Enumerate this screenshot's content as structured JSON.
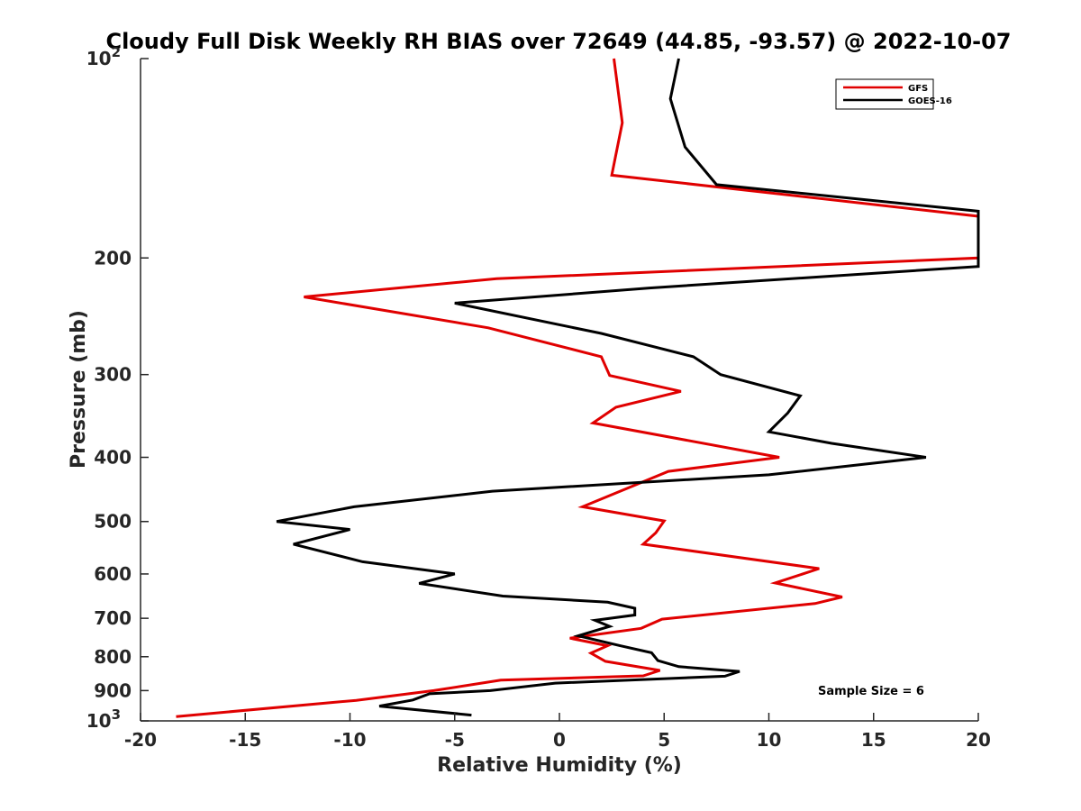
{
  "chart_data": {
    "type": "line",
    "title": "Cloudy Full Disk Weekly RH BIAS over 72649 (44.85, -93.57) @ 2022-10-07",
    "xlabel": "Relative Humidity (%)",
    "ylabel": "Pressure (mb)",
    "xlim": [
      -20,
      20
    ],
    "ylim": [
      100,
      1000
    ],
    "y_scale": "log",
    "y_reversed": true,
    "x_ticks": [
      "-20",
      "-15",
      "-10",
      "-5",
      "0",
      "5",
      "10",
      "15",
      "20"
    ],
    "y_ticks": [
      {
        "value": 100,
        "base": "10",
        "exp": "2"
      },
      {
        "value": 200,
        "label": "200"
      },
      {
        "value": 300,
        "label": "300"
      },
      {
        "value": 400,
        "label": "400"
      },
      {
        "value": 500,
        "label": "500"
      },
      {
        "value": 600,
        "label": "600"
      },
      {
        "value": 700,
        "label": "700"
      },
      {
        "value": 800,
        "label": "800"
      },
      {
        "value": 900,
        "label": "900"
      },
      {
        "value": 1000,
        "base": "10",
        "exp": "3"
      }
    ],
    "grid": false,
    "legend_position": "top-right",
    "annotation": "Sample Size = 6",
    "series": [
      {
        "name": "GFS",
        "color": "#e00000",
        "points": [
          [
            2.6,
            100
          ],
          [
            3.0,
            125
          ],
          [
            2.5,
            150
          ],
          [
            20,
            173
          ],
          [
            20,
            200
          ],
          [
            -3.0,
            215
          ],
          [
            -12.2,
            229
          ],
          [
            -3.4,
            255
          ],
          [
            2.0,
            282
          ],
          [
            2.4,
            301
          ],
          [
            5.8,
            318
          ],
          [
            2.7,
            336
          ],
          [
            1.6,
            355
          ],
          [
            10.5,
            400
          ],
          [
            5.2,
            420
          ],
          [
            1.1,
            475
          ],
          [
            5.0,
            499
          ],
          [
            4.6,
            520
          ],
          [
            4.0,
            541
          ],
          [
            12.4,
            589
          ],
          [
            10.3,
            619
          ],
          [
            13.5,
            650
          ],
          [
            12.2,
            665
          ],
          [
            4.9,
            702
          ],
          [
            3.9,
            725
          ],
          [
            0.5,
            750
          ],
          [
            2.3,
            770
          ],
          [
            1.5,
            790
          ],
          [
            2.2,
            813
          ],
          [
            4.8,
            839
          ],
          [
            4.0,
            855
          ],
          [
            -2.8,
            868
          ],
          [
            -6.0,
            900
          ],
          [
            -9.7,
            931
          ],
          [
            -18.3,
            985
          ]
        ]
      },
      {
        "name": "GOES-16",
        "color": "#000000",
        "points": [
          [
            5.7,
            100
          ],
          [
            5.3,
            115
          ],
          [
            6.0,
            136
          ],
          [
            7.5,
            155
          ],
          [
            20,
            170
          ],
          [
            20,
            206
          ],
          [
            4.3,
            222
          ],
          [
            -5.0,
            234
          ],
          [
            2.0,
            260
          ],
          [
            6.4,
            282
          ],
          [
            7.7,
            300
          ],
          [
            11.5,
            323
          ],
          [
            10.9,
            343
          ],
          [
            10.0,
            366
          ],
          [
            13.0,
            381
          ],
          [
            17.5,
            400
          ],
          [
            10.0,
            425
          ],
          [
            -3.2,
            450
          ],
          [
            -9.8,
            475
          ],
          [
            -13.5,
            500
          ],
          [
            -10.0,
            514
          ],
          [
            -12.7,
            541
          ],
          [
            -9.4,
            575
          ],
          [
            -5.0,
            600
          ],
          [
            -6.7,
            620
          ],
          [
            -2.7,
            648
          ],
          [
            2.3,
            662
          ],
          [
            3.6,
            676
          ],
          [
            3.6,
            692
          ],
          [
            1.7,
            705
          ],
          [
            2.4,
            720
          ],
          [
            0.9,
            744
          ],
          [
            2.9,
            770
          ],
          [
            4.4,
            789
          ],
          [
            4.7,
            811
          ],
          [
            5.7,
            828
          ],
          [
            8.6,
            842
          ],
          [
            7.9,
            856
          ],
          [
            -0.2,
            877
          ],
          [
            -3.3,
            900
          ],
          [
            -6.2,
            910
          ],
          [
            -7.0,
            930
          ],
          [
            -8.6,
            950
          ],
          [
            -4.2,
            980
          ]
        ]
      }
    ]
  }
}
